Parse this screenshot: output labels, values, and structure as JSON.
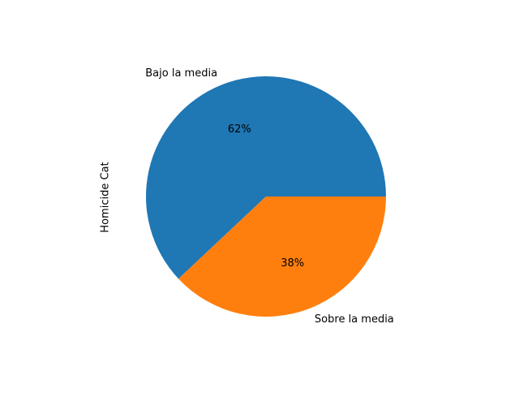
{
  "chart_data": {
    "type": "pie",
    "title": "",
    "ylabel": "Homicide Cat",
    "slices": [
      {
        "label": "Bajo la media",
        "value": 62,
        "pct_label": "62%",
        "color": "#1f77b4"
      },
      {
        "label": "Sobre la media",
        "value": 38,
        "pct_label": "38%",
        "color": "#ff7f0e"
      }
    ],
    "start_angle_deg": 0,
    "direction": "counterclockwise"
  }
}
